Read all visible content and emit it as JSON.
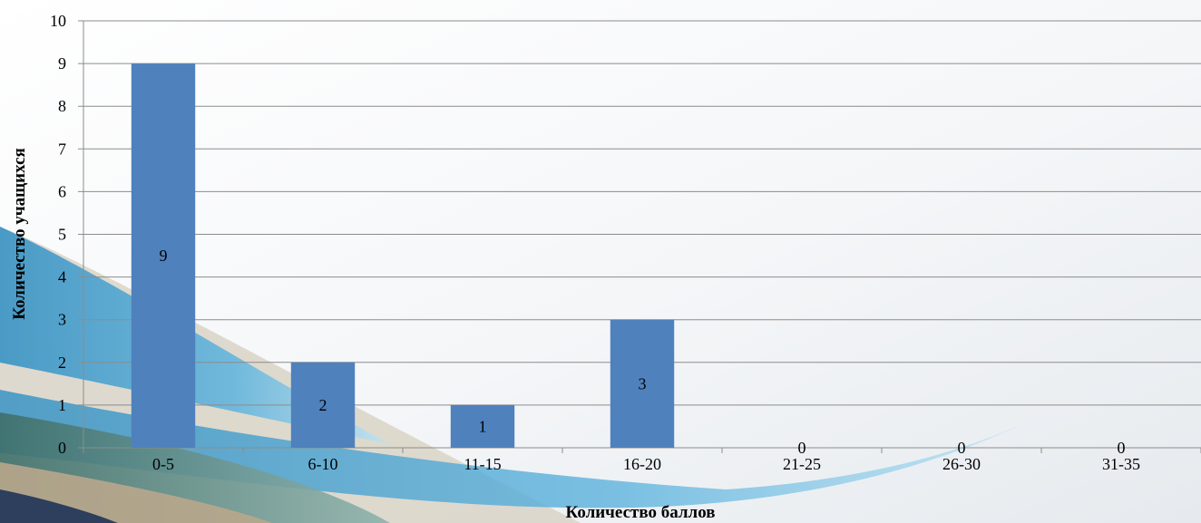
{
  "chart_data": {
    "type": "bar",
    "title": "",
    "xlabel": "Количество баллов",
    "ylabel": "Количество учащихся",
    "categories": [
      "0-5",
      "6-10",
      "11-15",
      "16-20",
      "21-25",
      "26-30",
      "31-35"
    ],
    "values": [
      9,
      2,
      1,
      3,
      0,
      0,
      0
    ],
    "data_labels": [
      "9",
      "2",
      "1",
      "3",
      "0",
      "0",
      "0"
    ],
    "ylim": [
      0,
      10
    ],
    "yticks": [
      "0",
      "1",
      "2",
      "3",
      "4",
      "5",
      "6",
      "7",
      "8",
      "9",
      "10"
    ],
    "grid": true,
    "legend": "none",
    "colors": {
      "bar": "#4f81bd",
      "grid": "#8c8c8c",
      "axis": "#8c8c8c"
    }
  }
}
